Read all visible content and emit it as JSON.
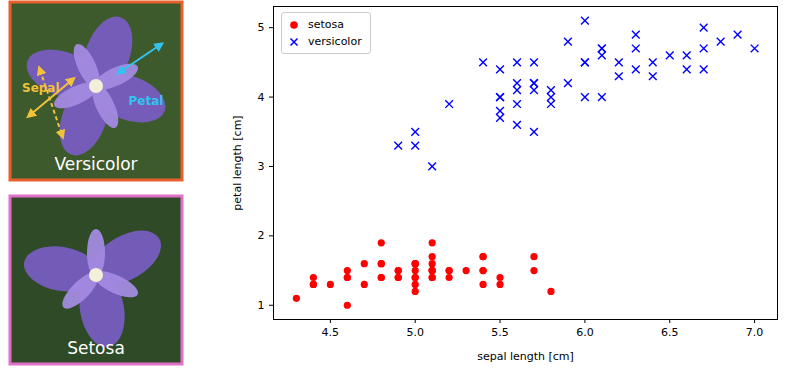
{
  "chart_data": {
    "type": "scatter",
    "xlabel": "sepal length [cm]",
    "ylabel": "petal length [cm]",
    "xlim": [
      4.165,
      7.135
    ],
    "ylim": [
      0.795,
      5.305
    ],
    "xticks": [
      4.5,
      {
        "value": 5,
        "label": "5.0"
      },
      5.5,
      {
        "value": 6,
        "label": "6.0"
      },
      6.5,
      {
        "value": 7,
        "label": "7.0"
      }
    ],
    "yticks": [
      1,
      2,
      3,
      4,
      5
    ],
    "grid": false,
    "legend": "upper left",
    "series": [
      {
        "name": "setosa",
        "color": "#ff0000",
        "marker": "circle",
        "x": [
          5.1,
          4.9,
          4.7,
          4.6,
          5.0,
          5.4,
          4.6,
          5.0,
          4.4,
          4.9,
          5.4,
          4.8,
          4.8,
          4.3,
          5.8,
          5.7,
          5.4,
          5.1,
          5.7,
          5.1,
          5.4,
          5.1,
          4.6,
          5.1,
          4.8,
          5.0,
          5.0,
          5.2,
          5.2,
          4.7,
          4.8,
          5.4,
          5.2,
          5.5,
          4.9,
          5.0,
          5.5,
          4.9,
          4.4,
          5.1,
          5.0,
          4.5,
          4.4,
          5.0,
          5.1,
          4.8,
          5.1,
          4.6,
          5.3,
          5.0
        ],
        "values": [
          1.4,
          1.4,
          1.3,
          1.5,
          1.4,
          1.7,
          1.4,
          1.5,
          1.4,
          1.5,
          1.5,
          1.6,
          1.4,
          1.1,
          1.2,
          1.5,
          1.3,
          1.4,
          1.7,
          1.5,
          1.7,
          1.5,
          1.0,
          1.7,
          1.9,
          1.6,
          1.6,
          1.5,
          1.4,
          1.6,
          1.6,
          1.5,
          1.5,
          1.4,
          1.5,
          1.2,
          1.3,
          1.4,
          1.3,
          1.5,
          1.3,
          1.3,
          1.3,
          1.6,
          1.9,
          1.4,
          1.6,
          1.4,
          1.5,
          1.4
        ]
      },
      {
        "name": "versicolor",
        "color": "#0000ff",
        "marker": "times",
        "x": [
          7.0,
          6.4,
          6.9,
          5.5,
          6.5,
          5.7,
          6.3,
          4.9,
          6.6,
          5.2,
          5.0,
          5.9,
          6.0,
          6.1,
          5.6,
          6.7,
          5.6,
          5.8,
          6.2,
          5.6,
          5.9,
          6.1,
          6.3,
          6.1,
          6.4,
          6.6,
          6.8,
          6.7,
          6.0,
          5.7,
          5.5,
          5.5,
          5.8,
          6.0,
          5.4,
          6.0,
          6.7,
          6.3,
          5.6,
          5.5,
          5.5,
          6.1,
          5.8,
          5.0,
          5.6,
          5.7,
          5.7,
          6.2,
          5.1,
          5.7
        ],
        "values": [
          4.7,
          4.5,
          4.9,
          4.0,
          4.6,
          4.5,
          4.7,
          3.3,
          4.6,
          3.9,
          3.5,
          4.2,
          4.0,
          4.7,
          3.6,
          4.4,
          4.5,
          4.1,
          4.5,
          3.9,
          4.8,
          4.0,
          4.9,
          4.7,
          4.3,
          4.4,
          4.8,
          5.0,
          4.5,
          3.5,
          3.8,
          3.7,
          3.9,
          5.1,
          4.5,
          4.5,
          4.7,
          4.4,
          4.1,
          4.0,
          4.4,
          4.6,
          4.0,
          3.3,
          4.2,
          4.2,
          4.2,
          4.3,
          3.0,
          4.1
        ]
      }
    ]
  },
  "photos": [
    {
      "label": "Versicolor",
      "annotations": [
        "Sepal",
        "Petal"
      ]
    },
    {
      "label": "Setosa"
    }
  ]
}
